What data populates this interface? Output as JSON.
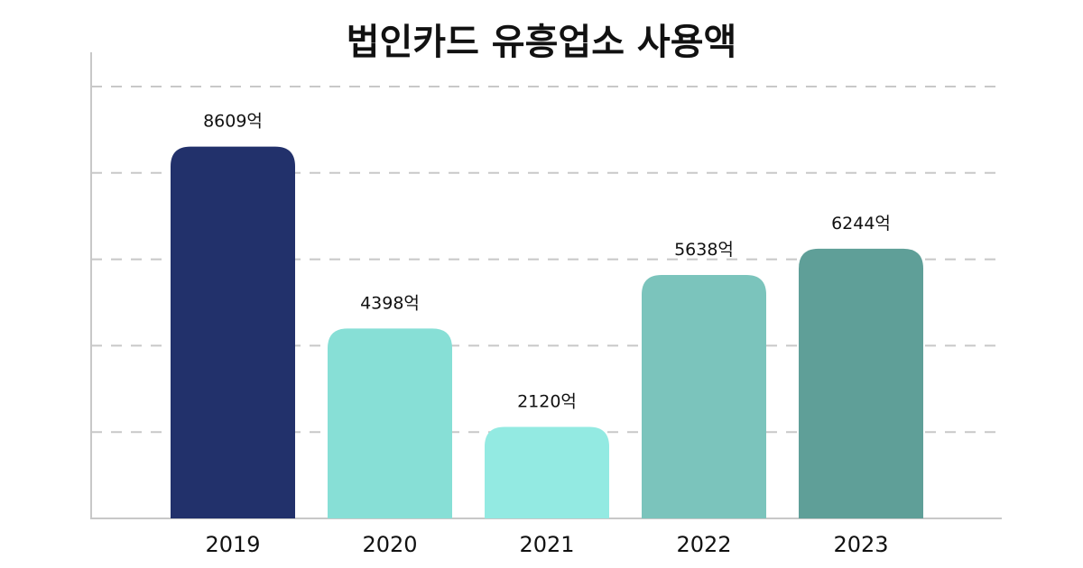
{
  "chart_data": {
    "type": "bar",
    "title": "법인카드 유흥업소 사용액",
    "xlabel": "",
    "ylabel": "",
    "categories": [
      "2019",
      "2020",
      "2021",
      "2022",
      "2023"
    ],
    "values": [
      8609,
      4398,
      2120,
      5638,
      6244
    ],
    "value_labels": [
      "8609억",
      "4398억",
      "2120억",
      "5638억",
      "6244억"
    ],
    "colors": [
      "#22316B",
      "#87DFD6",
      "#93EAE2",
      "#7BC4BC",
      "#5F9F98"
    ],
    "ylim": [
      0,
      10000
    ],
    "grid": true,
    "grid_style": "dashed"
  }
}
